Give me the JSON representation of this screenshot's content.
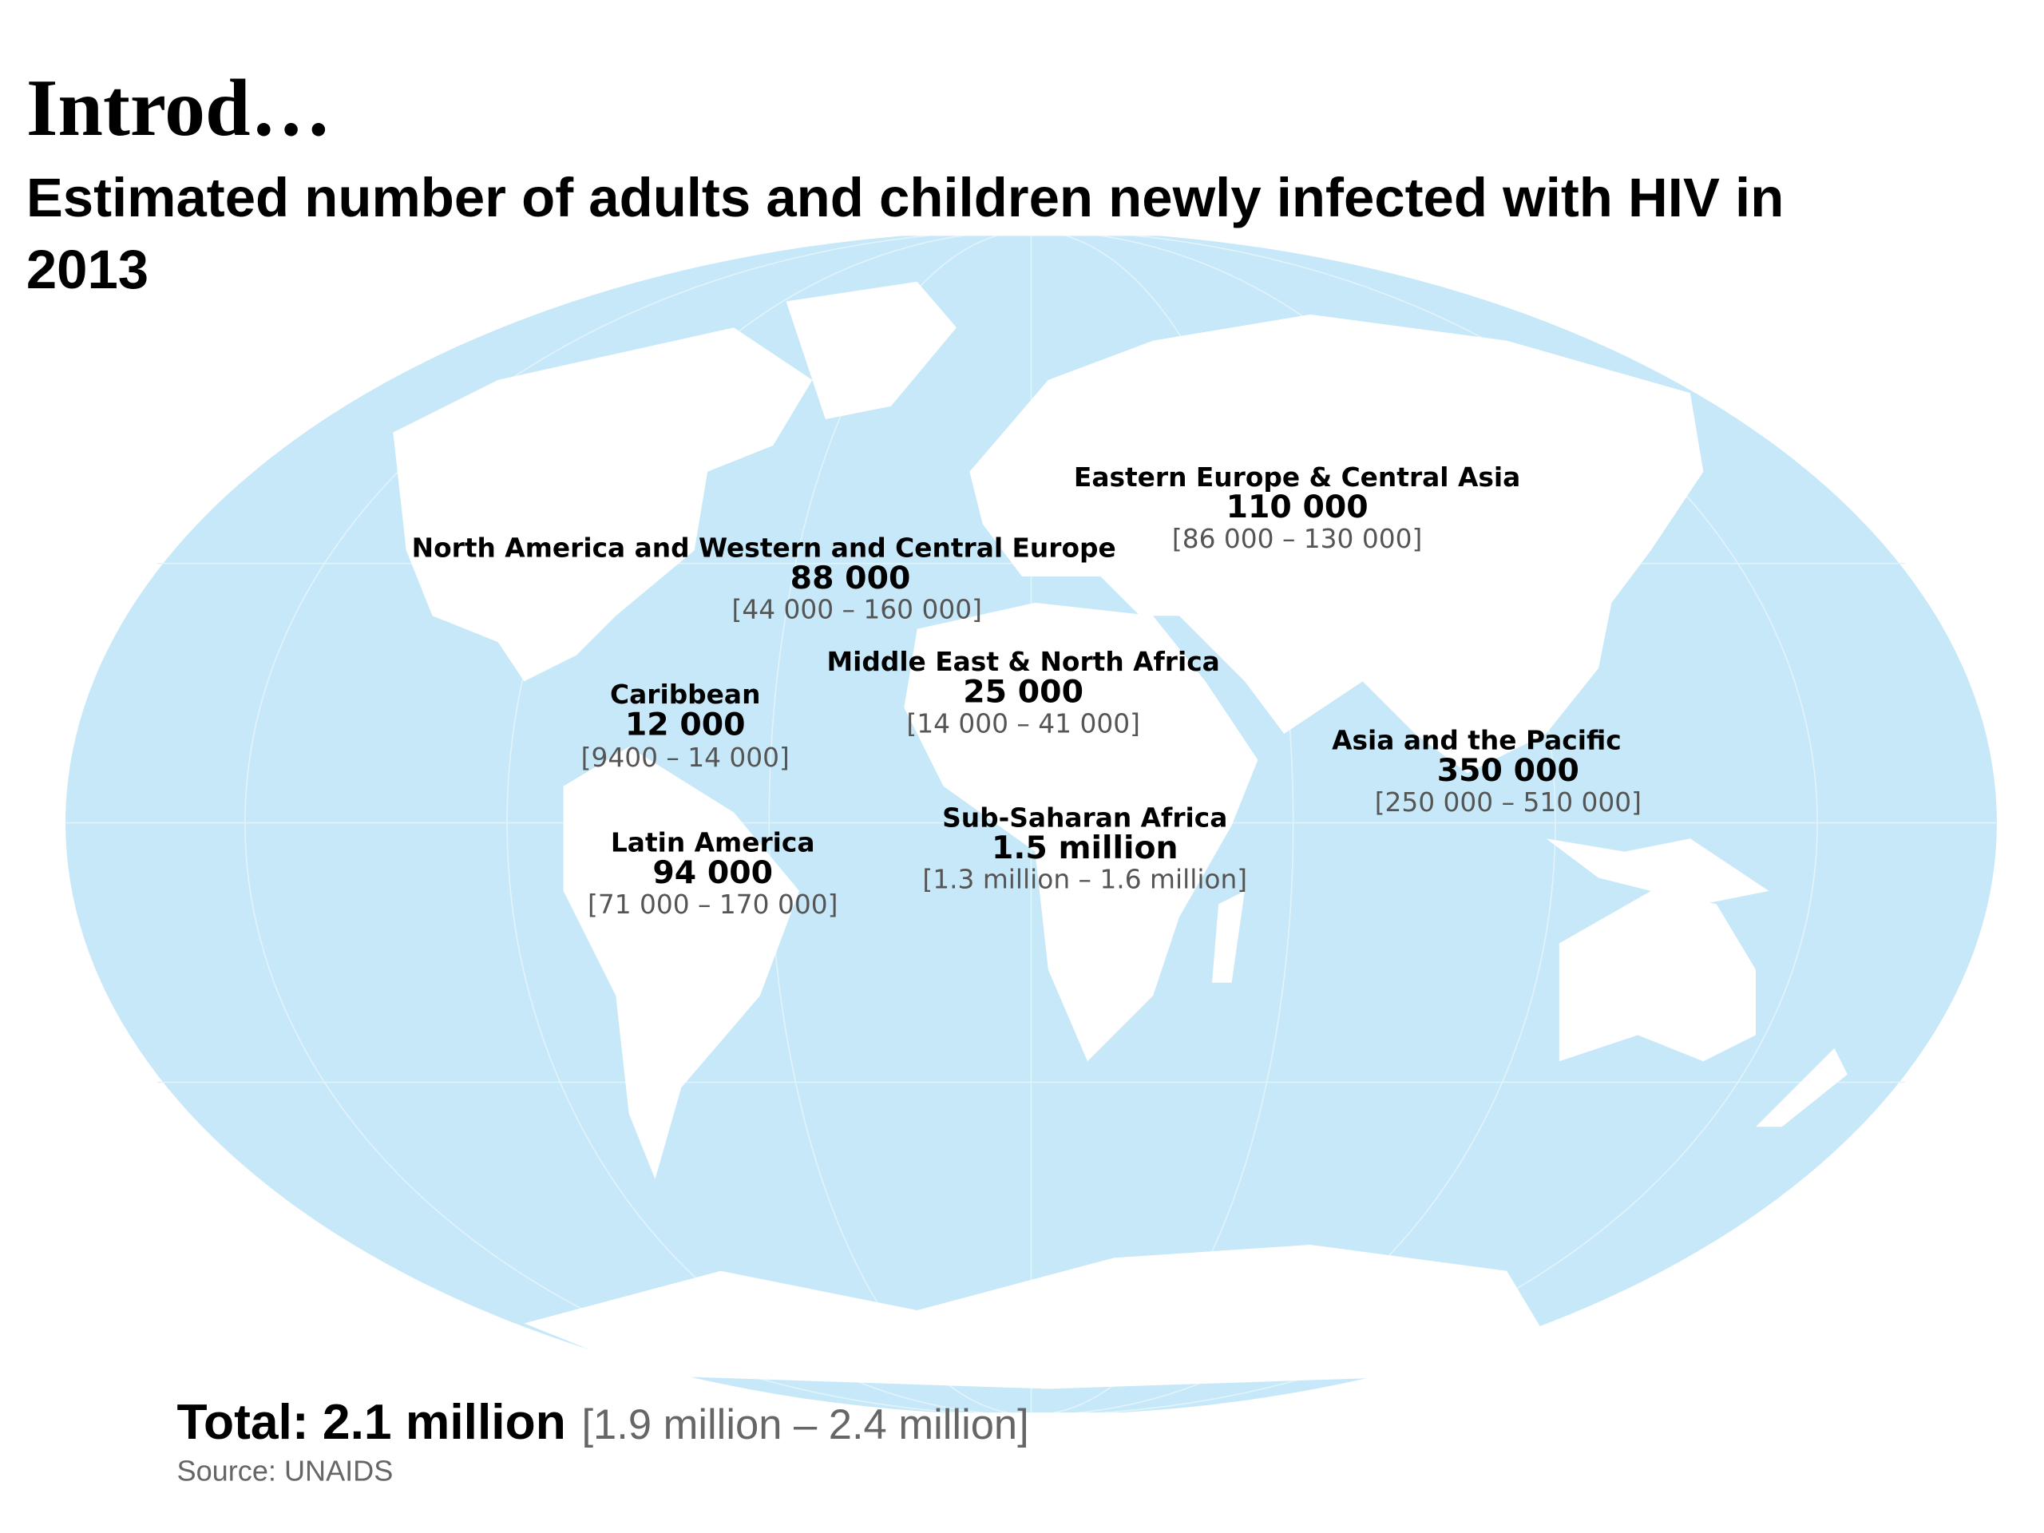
{
  "header": {
    "title": "Introd…",
    "subtitle_lines": [
      "Estimated number of adults and children newly infected with HIV in",
      "2013"
    ]
  },
  "regions": [
    {
      "name": "Eastern Europe & Central Asia",
      "value": "110 000",
      "range": "[86 000 – 130 000]"
    },
    {
      "name": "North America and Western and Central Europe",
      "value": "88 000",
      "range": "[44 000 – 160 000]"
    },
    {
      "name": "Middle East & North Africa",
      "value": "25 000",
      "range": "[14 000 – 41 000]"
    },
    {
      "name": "Caribbean",
      "value": "12 000",
      "range": "[9400 – 14 000]"
    },
    {
      "name": "Asia and the Pacific",
      "value": "350 000",
      "range": "[250 000 – 510 000]"
    },
    {
      "name": "Sub-Saharan Africa",
      "value": "1.5 million",
      "range": "[1.3 million – 1.6 million]"
    },
    {
      "name": "Latin America",
      "value": "94 000",
      "range": "[71 000 – 170 000]"
    }
  ],
  "total": {
    "label": "Total: 2.1 million",
    "range": "[1.9 million – 2.4 million]"
  },
  "source": "Source: UNAIDS"
}
